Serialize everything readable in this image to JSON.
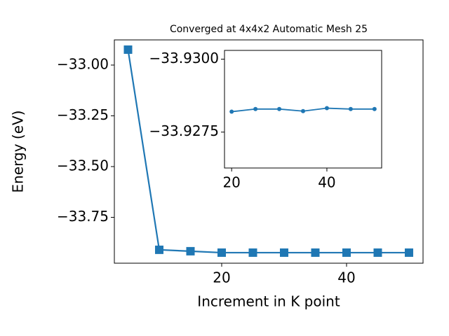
{
  "chart_data": [
    {
      "type": "line",
      "title": "Converged at 4x4x2 Automatic Mesh 25",
      "x_label": "Increment in K point",
      "y_label": "Energy (eV)",
      "marker": "square",
      "series": [
        {
          "color": "#1f77b4",
          "x": [
            5,
            10,
            15,
            20,
            25,
            30,
            35,
            40,
            45,
            50
          ],
          "values": [
            -32.924,
            -33.91,
            -33.917,
            -33.924,
            -33.924,
            -33.924,
            -33.924,
            -33.924,
            -33.924,
            -33.924
          ]
        }
      ],
      "xlim": [
        2.81,
        52.25
      ],
      "xticks": [
        20,
        40
      ],
      "ylim": [
        -33.976,
        -32.876
      ],
      "yticks": [
        {
          "value": -33.0,
          "label": "−33.00"
        },
        {
          "value": -33.25,
          "label": "−33.25"
        },
        {
          "value": -33.5,
          "label": "−33.50"
        },
        {
          "value": -33.75,
          "label": "−33.75"
        }
      ]
    },
    {
      "type": "line",
      "marker": "circle",
      "series": [
        {
          "color": "#1f77b4",
          "x": [
            20,
            25,
            30,
            35,
            40,
            45,
            50
          ],
          "values": [
            -33.9282,
            -33.92829,
            -33.92829,
            -33.92822,
            -33.92832,
            -33.92829,
            -33.92829
          ]
        }
      ],
      "xlim": [
        18.5,
        51.5
      ],
      "xticks": [
        20,
        40
      ],
      "ylim": [
        -33.92627,
        -33.9303
      ],
      "yticks": [
        {
          "value": -33.93,
          "label": "−33.9300"
        },
        {
          "value": -33.9275,
          "label": "−33.9275"
        }
      ]
    }
  ]
}
